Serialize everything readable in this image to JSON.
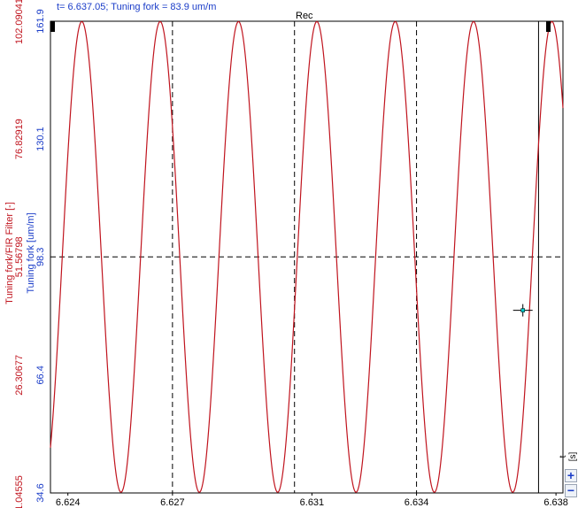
{
  "header": {
    "readout": "t= 6.637.05; Tuning fork = 83.9 um/m",
    "plot_title": "Rec"
  },
  "controls": {
    "x_unit": "t [s]",
    "zoom_in": "+",
    "zoom_out": "−"
  },
  "colors": {
    "signal": "#c0141e",
    "left_axis": "#c0141e",
    "right_axis": "#1a3cc8",
    "cursor_marker": "#00c8c8"
  },
  "chart_data": {
    "type": "line",
    "title": "Rec",
    "xlabel": "t [s]",
    "xlim": [
      6.6235,
      6.6382
    ],
    "x_ticks": [
      6.624,
      6.627,
      6.631,
      6.634,
      6.638
    ],
    "y_axes": [
      {
        "label": "Tuning fork/FIR Filter [-]",
        "color": "#c0141e",
        "ticks": [
          1.04555,
          26.30677,
          51.56798,
          76.82919,
          102.09041
        ]
      },
      {
        "label": "Tuning fork [um/m]",
        "color": "#1a3cc8",
        "ylim": [
          34.6,
          161.9
        ],
        "ticks": [
          34.6,
          66.4,
          98.3,
          130.1,
          161.9
        ]
      }
    ],
    "grid": "dashed cursor lines",
    "series": [
      {
        "signal": "sinusoid",
        "frequency_hz": 445,
        "amplitude": 63.5,
        "offset": 98.3,
        "peak_times": [
          6.6244,
          6.62664,
          6.62888,
          6.63113,
          6.63337,
          6.63562,
          6.63786
        ],
        "min": 34.6,
        "max": 161.9
      }
    ],
    "cursor": {
      "t": 6.63705,
      "value": 83.9
    },
    "vertical_lines": [
      6.6235,
      6.627,
      6.6305,
      6.634,
      6.6375
    ],
    "horizontal_line": 98.3
  }
}
